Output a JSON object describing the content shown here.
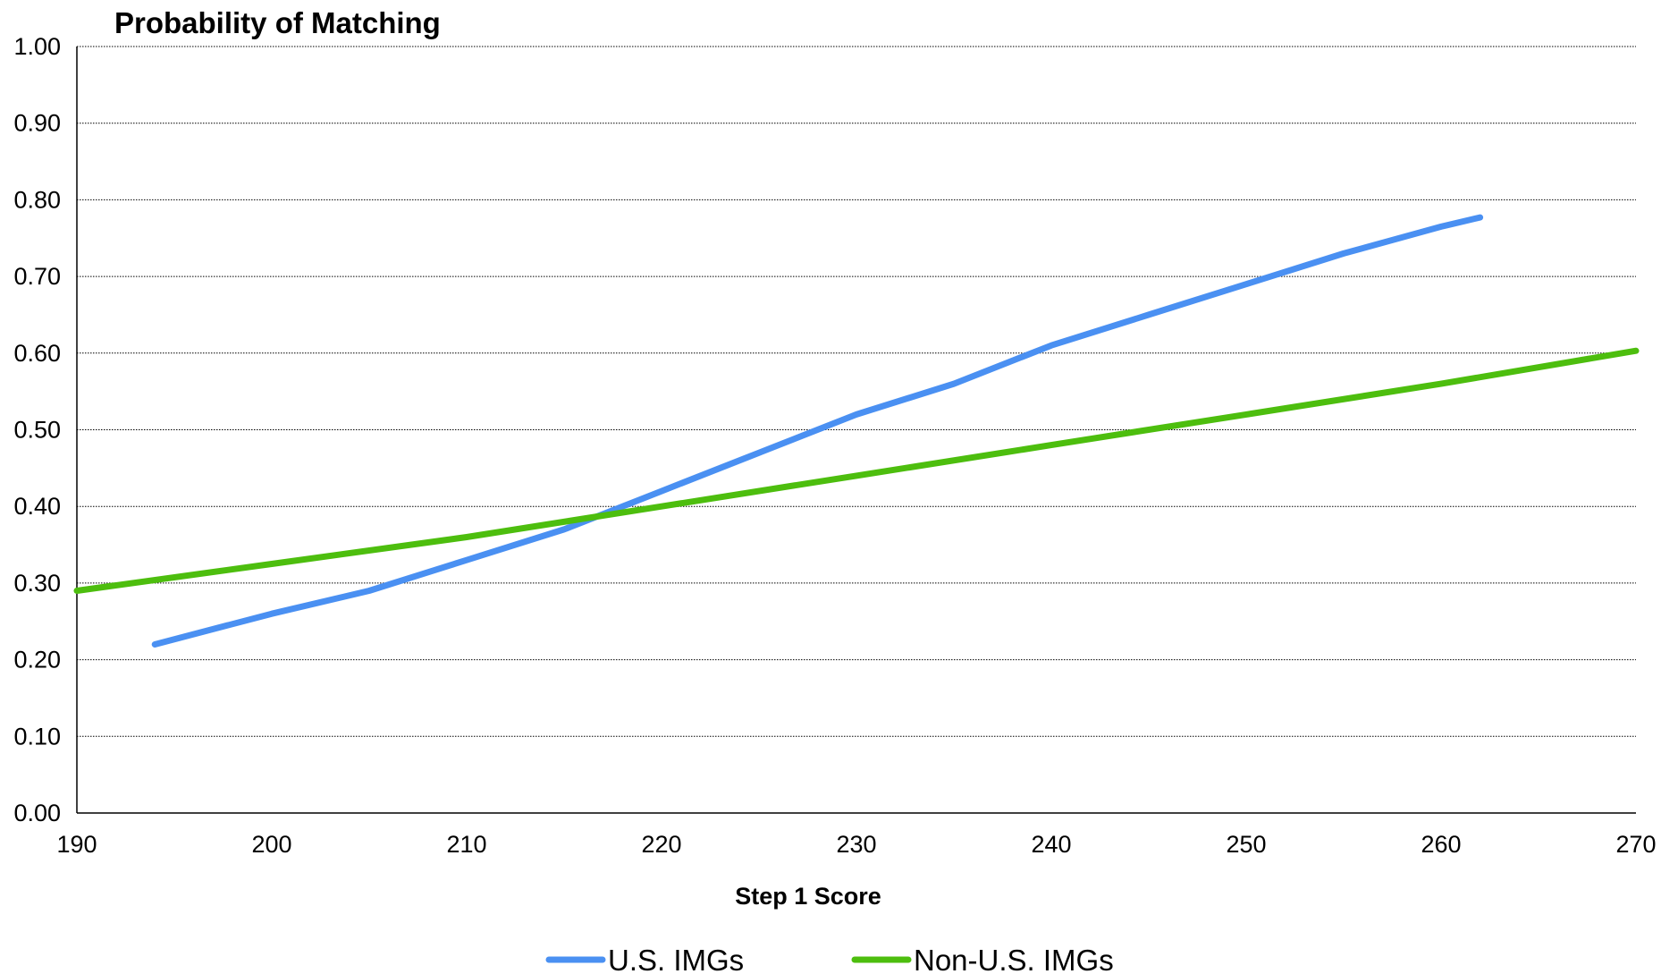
{
  "chart_data": {
    "type": "line",
    "title": "Probability of Matching",
    "xlabel": "Step 1 Score",
    "ylabel": "",
    "xlim": [
      190,
      270
    ],
    "ylim": [
      0,
      1
    ],
    "x_ticks": [
      "190",
      "200",
      "210",
      "220",
      "230",
      "240",
      "250",
      "260",
      "270"
    ],
    "y_ticks": [
      "0.00",
      "0.10",
      "0.20",
      "0.30",
      "0.40",
      "0.50",
      "0.60",
      "0.70",
      "0.80",
      "0.90",
      "1.00"
    ],
    "grid": "horizontal dotted",
    "legend_position": "bottom",
    "series": [
      {
        "name": "U.S. IMGs",
        "color": "#4A90F2",
        "x": [
          194,
          200,
          205,
          210,
          215,
          220,
          225,
          230,
          235,
          240,
          245,
          250,
          255,
          260,
          262
        ],
        "y": [
          0.22,
          0.26,
          0.29,
          0.33,
          0.37,
          0.42,
          0.47,
          0.52,
          0.56,
          0.61,
          0.65,
          0.69,
          0.73,
          0.765,
          0.777
        ]
      },
      {
        "name": "Non-U.S. IMGs",
        "color": "#4DBE0E",
        "x": [
          190,
          200,
          210,
          220,
          230,
          240,
          250,
          260,
          270
        ],
        "y": [
          0.29,
          0.325,
          0.36,
          0.4,
          0.44,
          0.48,
          0.52,
          0.56,
          0.603
        ]
      }
    ]
  }
}
